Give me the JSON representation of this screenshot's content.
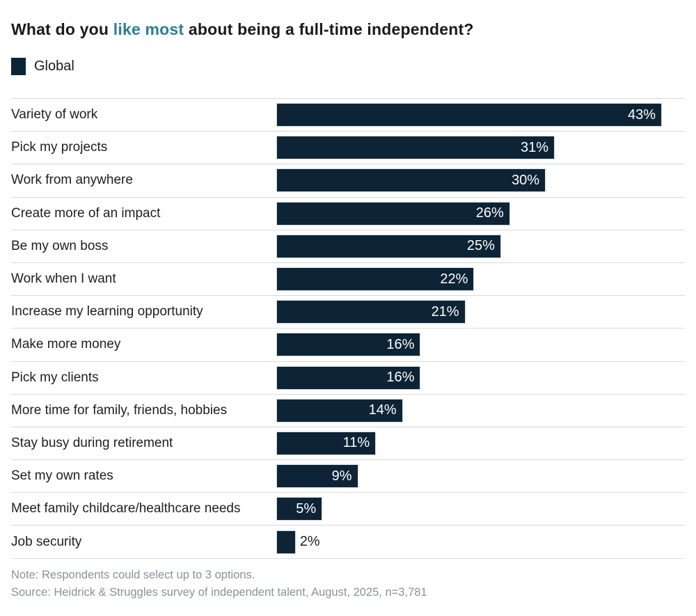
{
  "title": {
    "prefix": "What do you ",
    "highlight": "like most",
    "suffix": " about being a full-time independent?"
  },
  "legend": {
    "label": "Global"
  },
  "footer": {
    "note": "Note: Respondents could select up to 3 options.",
    "source": "Source: Heidrick & Struggles survey of independent talent, August, 2025, n=3,781"
  },
  "colors": {
    "bar": "#0d2436",
    "accent": "#2b7f97",
    "text": "#1a1a1a",
    "muted": "#8b909a",
    "divider": "#d9d9d9",
    "value_inside": "#ffffff",
    "value_outside": "#14212e"
  },
  "chart_data": {
    "type": "bar",
    "orientation": "horizontal",
    "title": "What do you like most about being a full-time independent?",
    "series_name": "Global",
    "unit": "%",
    "categories": [
      "Variety of work",
      "Pick my projects",
      "Work from anywhere",
      "Create more of an impact",
      "Be my own boss",
      "Work when I want",
      "Increase my learning opportunity",
      "Make more money",
      "Pick my clients",
      "More time for family, friends, hobbies",
      "Stay busy during retirement",
      "Set my own rates",
      "Meet family childcare/healthcare needs",
      "Job security"
    ],
    "values": [
      43,
      31,
      30,
      26,
      25,
      22,
      21,
      16,
      16,
      14,
      11,
      9,
      5,
      2
    ],
    "value_labels": [
      "43%",
      "31%",
      "30%",
      "26%",
      "25%",
      "22%",
      "21%",
      "16%",
      "16%",
      "14%",
      "11%",
      "9%",
      "5%",
      "2%"
    ],
    "xlim": [
      0,
      43
    ],
    "grid": false,
    "legend_position": "top-left"
  }
}
